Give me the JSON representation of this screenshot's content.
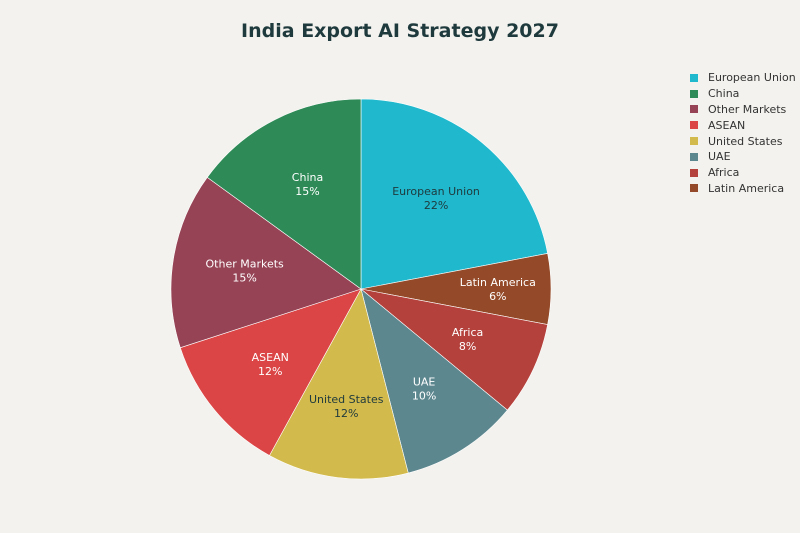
{
  "chart_data": {
    "type": "pie",
    "title": "India Export AI Strategy 2027",
    "start_angle_deg": 0,
    "direction": "clockwise",
    "slices": [
      {
        "label": "European Union",
        "value": 22,
        "display": "22%",
        "color": "#1fb8cd",
        "text_color": "#1f3a3d"
      },
      {
        "label": "Latin America",
        "value": 6,
        "display": "6%",
        "color": "#944a28",
        "text_color": "#ffffff"
      },
      {
        "label": "Africa",
        "value": 8,
        "display": "8%",
        "color": "#b4413c",
        "text_color": "#ffffff"
      },
      {
        "label": "UAE",
        "value": 10,
        "display": "10%",
        "color": "#5d878f",
        "text_color": "#ffffff"
      },
      {
        "label": "United States",
        "value": 12,
        "display": "12%",
        "color": "#d2ba4c",
        "text_color": "#1f3a3d"
      },
      {
        "label": "ASEAN",
        "value": 12,
        "display": "12%",
        "color": "#db4545",
        "text_color": "#ffffff"
      },
      {
        "label": "Other Markets",
        "value": 15,
        "display": "15%",
        "color": "#964355",
        "text_color": "#ffffff"
      },
      {
        "label": "China",
        "value": 15,
        "display": "15%",
        "color": "#2e8b57",
        "text_color": "#ffffff"
      }
    ],
    "legend": {
      "placement": "top-right",
      "entries": [
        {
          "label": "European Union",
          "color": "#1fb8cd"
        },
        {
          "label": "China",
          "color": "#2e8b57"
        },
        {
          "label": "Other Markets",
          "color": "#964355"
        },
        {
          "label": "ASEAN",
          "color": "#db4545"
        },
        {
          "label": "United States",
          "color": "#d2ba4c"
        },
        {
          "label": "UAE",
          "color": "#5d878f"
        },
        {
          "label": "Africa",
          "color": "#b4413c"
        },
        {
          "label": "Latin America",
          "color": "#944a28"
        }
      ]
    }
  }
}
